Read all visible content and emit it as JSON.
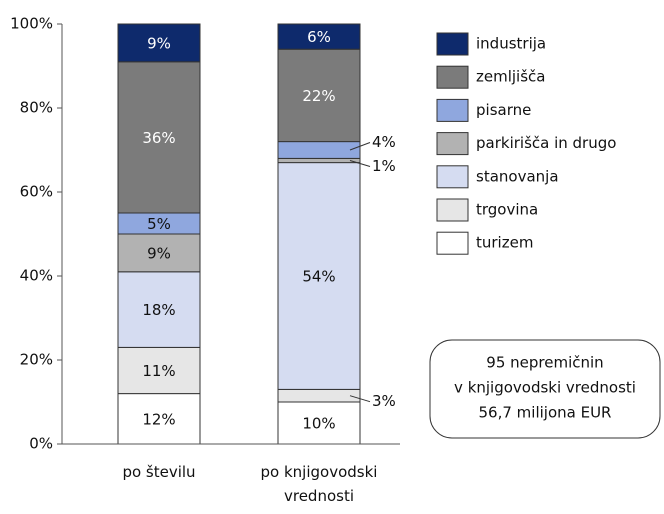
{
  "chart_data": {
    "type": "stacked_bar",
    "categories": [
      "po številu",
      "po knjigovodski vrednosti"
    ],
    "series": [
      {
        "name": "turizem",
        "color": "#ffffff",
        "values": [
          12,
          10
        ],
        "value_labels": [
          "12%",
          "10%"
        ]
      },
      {
        "name": "trgovina",
        "color": "#e6e6e6",
        "values": [
          11,
          3
        ],
        "value_labels": [
          "11%",
          "3%"
        ]
      },
      {
        "name": "stanovanja",
        "color": "#d5dcf1",
        "values": [
          18,
          54
        ],
        "value_labels": [
          "18%",
          "54%"
        ]
      },
      {
        "name": "parkirišča in drugo",
        "color": "#b2b2b2",
        "values": [
          9,
          1
        ],
        "value_labels": [
          "9%",
          "1%"
        ]
      },
      {
        "name": "pisarne",
        "color": "#8fa7de",
        "values": [
          5,
          4
        ],
        "value_labels": [
          "5%",
          "4%"
        ]
      },
      {
        "name": "zemljišča",
        "color": "#7b7b7b",
        "values": [
          36,
          22
        ],
        "value_labels": [
          "36%",
          "22%"
        ]
      },
      {
        "name": "industrija",
        "color": "#0e2a6c",
        "values": [
          9,
          6
        ],
        "value_labels": [
          "9%",
          "6%"
        ]
      }
    ],
    "ylim": [
      0,
      100
    ],
    "yticks": [
      {
        "value": 0,
        "label": "0%"
      },
      {
        "value": 20,
        "label": "20%"
      },
      {
        "value": 40,
        "label": "40%"
      },
      {
        "value": 60,
        "label": "60%"
      },
      {
        "value": 80,
        "label": "80%"
      },
      {
        "value": 100,
        "label": "100%"
      }
    ],
    "annotation": [
      "95 nepremičnin",
      "v knjigovodski vrednosti",
      "56,7 milijona EUR"
    ],
    "legend": "right"
  }
}
